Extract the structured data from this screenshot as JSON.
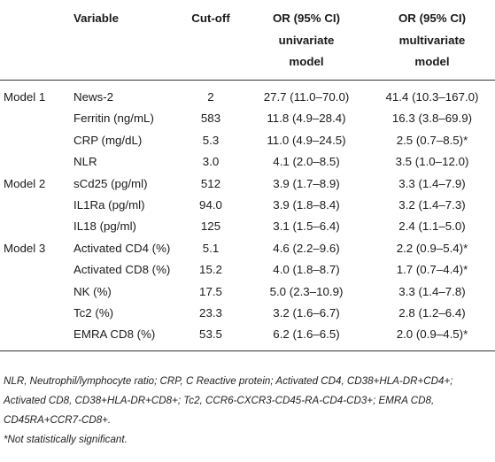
{
  "table": {
    "headers": {
      "model": "",
      "variable": "Variable",
      "cutoff": "Cut-off",
      "univariate_line1": "OR (95% CI)",
      "univariate_line2": "univariate",
      "univariate_line3": "model",
      "multivariate_line1": "OR (95% CI)",
      "multivariate_line2": "multivariate",
      "multivariate_line3": "model"
    },
    "rows": [
      {
        "model": "Model 1",
        "variable": "News-2",
        "cutoff": "2",
        "univariate": "27.7 (11.0–70.0)",
        "multivariate": "41.4 (10.3–167.0)"
      },
      {
        "model": "",
        "variable": "Ferritin (ng/mL)",
        "cutoff": "583",
        "univariate": "11.8 (4.9–28.4)",
        "multivariate": "16.3 (3.8–69.9)"
      },
      {
        "model": "",
        "variable": "CRP (mg/dL)",
        "cutoff": "5.3",
        "univariate": "11.0 (4.9–24.5)",
        "multivariate": "2.5 (0.7–8.5)*"
      },
      {
        "model": "",
        "variable": "NLR",
        "cutoff": "3.0",
        "univariate": "4.1 (2.0–8.5)",
        "multivariate": "3.5 (1.0–12.0)"
      },
      {
        "model": "Model 2",
        "variable": "sCd25 (pg/ml)",
        "cutoff": "512",
        "univariate": "3.9 (1.7–8.9)",
        "multivariate": "3.3 (1.4–7.9)"
      },
      {
        "model": "",
        "variable": "IL1Ra (pg/ml)",
        "cutoff": "94.0",
        "univariate": "3.9 (1.8–8.4)",
        "multivariate": "3.2 (1.4–7.3)"
      },
      {
        "model": "",
        "variable": "IL18 (pg/ml)",
        "cutoff": "125",
        "univariate": "3.1 (1.5–6.4)",
        "multivariate": "2.4 (1.1–5.0)"
      },
      {
        "model": "Model 3",
        "variable": "Activated CD4 (%)",
        "cutoff": "5.1",
        "univariate": "4.6 (2.2–9.6)",
        "multivariate": "2.2 (0.9–5.4)*"
      },
      {
        "model": "",
        "variable": "Activated CD8 (%)",
        "cutoff": "15.2",
        "univariate": "4.0 (1.8–8.7)",
        "multivariate": "1.7 (0.7–4.4)*"
      },
      {
        "model": "",
        "variable": "NK (%)",
        "cutoff": "17.5",
        "univariate": "5.0 (2.3–10.9)",
        "multivariate": "3.3 (1.4–7.8)"
      },
      {
        "model": "",
        "variable": "Tc2 (%)",
        "cutoff": "23.3",
        "univariate": "3.2 (1.6–6.7)",
        "multivariate": "2.8 (1.2–6.4)"
      },
      {
        "model": "",
        "variable": "EMRA CD8 (%)",
        "cutoff": "53.5",
        "univariate": "6.2 (1.6–6.5)",
        "multivariate": "2.0 (0.9–4.5)*"
      }
    ]
  },
  "footnotes": {
    "abbreviations": "NLR, Neutrophil/lymphocyte ratio; CRP, C Reactive protein; Activated CD4, CD38+HLA-DR+CD4+; Activated CD8, CD38+HLA-DR+CD8+; Tc2, CCR6-CXCR3-CD45-RA-CD4-CD3+; EMRA CD8, CD45RA+CCR7-CD8+.",
    "significance": "*Not statistically significant."
  }
}
